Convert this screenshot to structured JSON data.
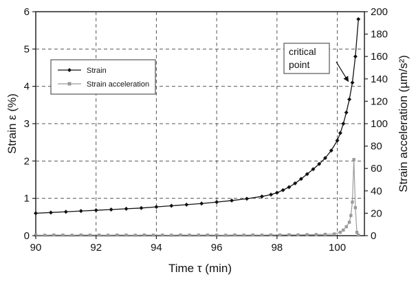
{
  "chart_data": {
    "type": "line",
    "xlabel": "Time τ (min)",
    "ylabel": "Strain ε (%)",
    "y2label": "Strain acceleration (µm/s²)",
    "xlim": [
      90,
      100.9
    ],
    "ylim": [
      0,
      6
    ],
    "y2lim": [
      0,
      200
    ],
    "x_ticks": [
      "90",
      "92",
      "94",
      "96",
      "98",
      "100"
    ],
    "y_ticks": [
      "0",
      "1",
      "2",
      "3",
      "4",
      "5",
      "6"
    ],
    "y2_ticks": [
      "0",
      "20",
      "40",
      "60",
      "80",
      "100",
      "120",
      "140",
      "160",
      "180",
      "200"
    ],
    "grid": true,
    "legend_position": "upper-left",
    "annotation": {
      "line1": "critical",
      "line2": "point",
      "x": 100.4,
      "y": 4.1
    },
    "series": [
      {
        "name": "Strain",
        "axis": "left",
        "color": "#111111",
        "marker": "diamond",
        "x": [
          90,
          90.5,
          91,
          91.5,
          92,
          92.5,
          93,
          93.5,
          94,
          94.5,
          95,
          95.5,
          96,
          96.5,
          97,
          97.5,
          97.8,
          98,
          98.2,
          98.4,
          98.6,
          98.8,
          99,
          99.2,
          99.4,
          99.6,
          99.8,
          100,
          100.1,
          100.2,
          100.3,
          100.4,
          100.5,
          100.6,
          100.7
        ],
        "y": [
          0.6,
          0.62,
          0.64,
          0.66,
          0.68,
          0.7,
          0.72,
          0.74,
          0.77,
          0.8,
          0.83,
          0.86,
          0.9,
          0.94,
          0.99,
          1.05,
          1.1,
          1.15,
          1.22,
          1.3,
          1.4,
          1.52,
          1.65,
          1.78,
          1.92,
          2.08,
          2.28,
          2.55,
          2.75,
          3.0,
          3.3,
          3.65,
          4.1,
          4.8,
          5.8
        ]
      },
      {
        "name": "Strain acceleration",
        "axis": "right",
        "color": "#999999",
        "marker": "square",
        "x": [
          90,
          90.3,
          90.6,
          90.9,
          91.2,
          91.5,
          91.8,
          92.1,
          92.4,
          92.7,
          93,
          93.3,
          93.6,
          93.9,
          94.2,
          94.5,
          94.8,
          95.1,
          95.4,
          95.7,
          96,
          96.3,
          96.6,
          96.9,
          97.2,
          97.5,
          97.8,
          98.1,
          98.4,
          98.7,
          99,
          99.3,
          99.6,
          99.9,
          100.1,
          100.2,
          100.3,
          100.4,
          100.45,
          100.5,
          100.55,
          100.6,
          100.65,
          100.7
        ],
        "y": [
          0.5,
          0.4,
          0.6,
          0.5,
          0.4,
          0.6,
          0.5,
          0.5,
          0.4,
          0.6,
          0.5,
          0.4,
          0.6,
          0.5,
          0.5,
          0.4,
          0.6,
          0.5,
          0.5,
          0.6,
          0.5,
          0.4,
          0.6,
          0.5,
          0.6,
          0.5,
          0.7,
          0.6,
          0.8,
          0.7,
          0.9,
          1.0,
          1.2,
          1.5,
          3,
          5,
          8,
          12,
          18,
          30,
          68,
          25,
          3,
          0.5
        ]
      }
    ]
  }
}
